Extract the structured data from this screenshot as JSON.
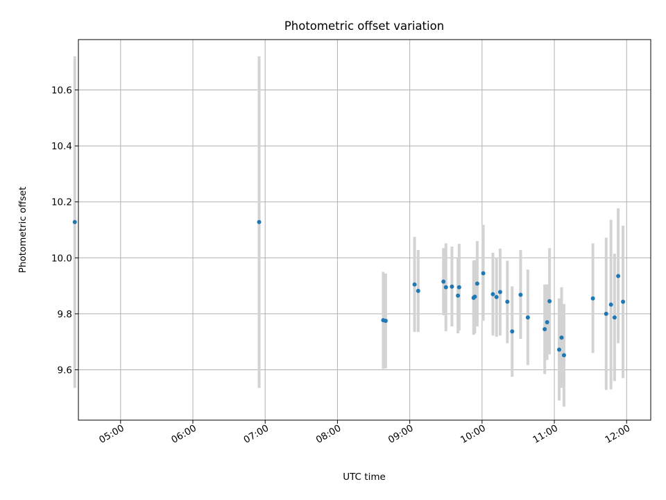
{
  "chart_data": {
    "type": "scatter",
    "title": "Photometric offset variation",
    "xlabel": "UTC time",
    "ylabel": "Photometric offset",
    "x_unit": "hours UTC",
    "xlim": [
      "04:25",
      "12:20"
    ],
    "ylim": [
      9.42,
      10.78
    ],
    "xticks": [
      "05:00",
      "06:00",
      "07:00",
      "08:00",
      "09:00",
      "10:00",
      "11:00",
      "12:00"
    ],
    "yticks": [
      "9.6",
      "9.8",
      "10.0",
      "10.2",
      "10.4",
      "10.6"
    ],
    "grid": true,
    "colors": {
      "point": "#1f77b4",
      "errorbar": "#d3d3d3",
      "grid": "#b0b0b0",
      "axes": "#000000"
    },
    "points": [
      {
        "time": "04:22",
        "y": 10.128,
        "low": 9.535,
        "high": 10.72
      },
      {
        "time": "06:55",
        "y": 10.128,
        "low": 9.535,
        "high": 10.72
      },
      {
        "time": "08:38",
        "y": 9.777,
        "low": 9.603,
        "high": 9.95
      },
      {
        "time": "08:40",
        "y": 9.775,
        "low": 9.605,
        "high": 9.944
      },
      {
        "time": "09:04",
        "y": 9.905,
        "low": 9.735,
        "high": 10.075
      },
      {
        "time": "09:07",
        "y": 9.882,
        "low": 9.735,
        "high": 10.028
      },
      {
        "time": "09:28",
        "y": 9.915,
        "low": 9.795,
        "high": 10.035
      },
      {
        "time": "09:30",
        "y": 9.895,
        "low": 9.738,
        "high": 10.052
      },
      {
        "time": "09:35",
        "y": 9.897,
        "low": 9.755,
        "high": 10.04
      },
      {
        "time": "09:40",
        "y": 9.865,
        "low": 9.73,
        "high": 10.0
      },
      {
        "time": "09:41",
        "y": 9.895,
        "low": 9.74,
        "high": 10.05
      },
      {
        "time": "09:53",
        "y": 9.857,
        "low": 9.725,
        "high": 9.99
      },
      {
        "time": "09:54",
        "y": 9.861,
        "low": 9.73,
        "high": 9.992
      },
      {
        "time": "09:56",
        "y": 9.908,
        "low": 9.755,
        "high": 10.06
      },
      {
        "time": "10:01",
        "y": 9.945,
        "low": 9.775,
        "high": 10.118
      },
      {
        "time": "10:09",
        "y": 9.87,
        "low": 9.722,
        "high": 10.018
      },
      {
        "time": "10:12",
        "y": 9.86,
        "low": 9.718,
        "high": 10.002
      },
      {
        "time": "10:15",
        "y": 9.878,
        "low": 9.722,
        "high": 10.033
      },
      {
        "time": "10:21",
        "y": 9.843,
        "low": 9.695,
        "high": 9.99
      },
      {
        "time": "10:25",
        "y": 9.737,
        "low": 9.575,
        "high": 9.898
      },
      {
        "time": "10:32",
        "y": 9.868,
        "low": 9.71,
        "high": 10.028
      },
      {
        "time": "10:38",
        "y": 9.787,
        "low": 9.617,
        "high": 9.958
      },
      {
        "time": "10:52",
        "y": 9.745,
        "low": 9.585,
        "high": 9.905
      },
      {
        "time": "10:54",
        "y": 9.77,
        "low": 9.635,
        "high": 9.905
      },
      {
        "time": "10:56",
        "y": 9.845,
        "low": 9.655,
        "high": 10.035
      },
      {
        "time": "11:04",
        "y": 9.672,
        "low": 9.49,
        "high": 9.855
      },
      {
        "time": "11:06",
        "y": 9.715,
        "low": 9.535,
        "high": 9.895
      },
      {
        "time": "11:08",
        "y": 9.652,
        "low": 9.468,
        "high": 9.835
      },
      {
        "time": "11:32",
        "y": 9.855,
        "low": 9.66,
        "high": 10.052
      },
      {
        "time": "11:43",
        "y": 9.8,
        "low": 9.528,
        "high": 10.072
      },
      {
        "time": "11:47",
        "y": 9.833,
        "low": 9.53,
        "high": 10.136
      },
      {
        "time": "11:50",
        "y": 9.787,
        "low": 9.56,
        "high": 10.015
      },
      {
        "time": "11:53",
        "y": 9.935,
        "low": 9.695,
        "high": 10.177
      },
      {
        "time": "11:57",
        "y": 9.843,
        "low": 9.57,
        "high": 10.115
      }
    ]
  }
}
